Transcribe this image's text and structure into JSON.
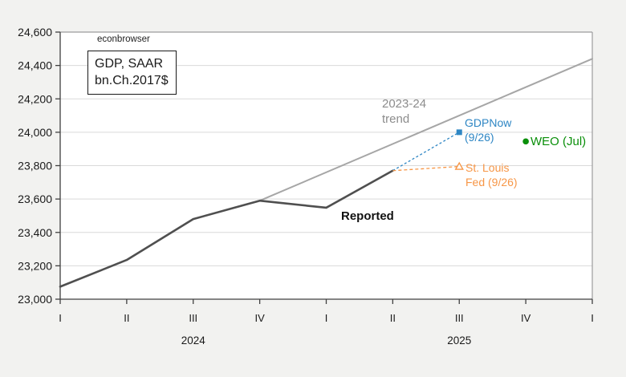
{
  "watermark": "econbrowser",
  "title_box": {
    "line1": "GDP, SAAR",
    "line2": "bn.Ch.2017$"
  },
  "annotations": {
    "trend_line1": "2023-24",
    "trend_line2": "trend",
    "gdpnow_line1": "GDPNow",
    "gdpnow_line2": "(9/26)",
    "stlouis_line1": "St. Louis",
    "stlouis_line2": "Fed (9/26)",
    "weo": "WEO (Jul)",
    "reported": "Reported"
  },
  "chart_data": {
    "type": "line",
    "title": "GDP, SAAR bn.Ch.2017$",
    "xlabel": "",
    "ylabel": "",
    "grid": true,
    "x_tick_labels": [
      "I",
      "II",
      "III",
      "IV",
      "I",
      "II",
      "III",
      "IV",
      "I"
    ],
    "x_year_labels": [
      {
        "label": "2024",
        "at_tick": 2
      },
      {
        "label": "2025",
        "at_tick": 6
      }
    ],
    "y_axis": {
      "min": 23000,
      "max": 24600,
      "step": 200,
      "tick_labels": [
        "24,600",
        "24,400",
        "24,200",
        "24,000",
        "23,800",
        "23,600",
        "23,400",
        "23,200",
        "23,000"
      ]
    },
    "colors": {
      "background": "#f2f2f0",
      "plot_background": "#ffffff",
      "grid": "#d9d9d9",
      "axis": "#404040",
      "border": "#9c9c9c",
      "reported": "#4f4f4f",
      "trend": "#a6a6a6",
      "gdpnow_blue": "#2e86c4",
      "stlouis_orange": "#f79646",
      "weo_green": "#0a8f0a"
    },
    "series": [
      {
        "key": "trend",
        "name": "2023-24 trend",
        "type": "line",
        "color": "#a6a6a6",
        "width": 2,
        "x_idx": [
          3,
          8
        ],
        "values": [
          23590,
          24440
        ]
      },
      {
        "key": "reported",
        "name": "Reported",
        "type": "line",
        "color": "#4f4f4f",
        "width": 2.6,
        "x_idx": [
          0,
          1,
          2,
          3,
          4,
          5
        ],
        "values": [
          23075,
          23235,
          23480,
          23590,
          23548,
          23770
        ]
      },
      {
        "key": "gdpnow",
        "name": "GDPNow (9/26)",
        "type": "point",
        "marker": "square",
        "color": "#2e86c4",
        "x_idx": 6,
        "value": 24000,
        "connector": {
          "from_x_idx": 5,
          "from_value": 23770,
          "dash": "3 2.6"
        }
      },
      {
        "key": "stlouis",
        "name": "St. Louis Fed (9/26)",
        "type": "point",
        "marker": "triangle-open",
        "color": "#f79646",
        "x_idx": 6,
        "value": 23795,
        "connector": {
          "from_x_idx": 5,
          "from_value": 23770,
          "dash": "4 3"
        }
      },
      {
        "key": "weo",
        "name": "WEO (Jul)",
        "type": "point",
        "marker": "circle",
        "color": "#0a8f0a",
        "x_idx": 7,
        "value": 23945
      }
    ]
  }
}
